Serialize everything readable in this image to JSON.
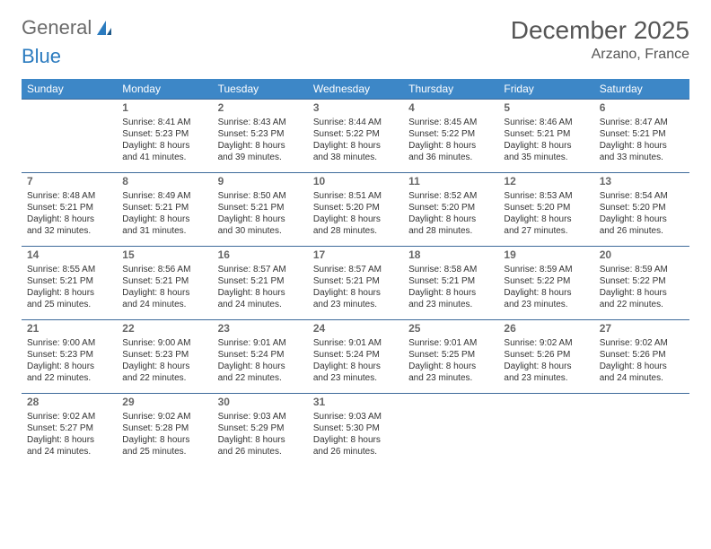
{
  "logo": {
    "part1": "General",
    "part2": "Blue"
  },
  "title": "December 2025",
  "location": "Arzano, France",
  "weekdays": [
    "Sunday",
    "Monday",
    "Tuesday",
    "Wednesday",
    "Thursday",
    "Friday",
    "Saturday"
  ],
  "colors": {
    "header_bg": "#3d87c7",
    "header_text": "#ffffff",
    "cell_border": "#3d6a9a",
    "logo_gray": "#6a6a6a",
    "logo_blue": "#2b7bbf",
    "title_color": "#555555"
  },
  "weeks": [
    [
      null,
      {
        "n": "1",
        "sr": "Sunrise: 8:41 AM",
        "ss": "Sunset: 5:23 PM",
        "d1": "Daylight: 8 hours",
        "d2": "and 41 minutes."
      },
      {
        "n": "2",
        "sr": "Sunrise: 8:43 AM",
        "ss": "Sunset: 5:23 PM",
        "d1": "Daylight: 8 hours",
        "d2": "and 39 minutes."
      },
      {
        "n": "3",
        "sr": "Sunrise: 8:44 AM",
        "ss": "Sunset: 5:22 PM",
        "d1": "Daylight: 8 hours",
        "d2": "and 38 minutes."
      },
      {
        "n": "4",
        "sr": "Sunrise: 8:45 AM",
        "ss": "Sunset: 5:22 PM",
        "d1": "Daylight: 8 hours",
        "d2": "and 36 minutes."
      },
      {
        "n": "5",
        "sr": "Sunrise: 8:46 AM",
        "ss": "Sunset: 5:21 PM",
        "d1": "Daylight: 8 hours",
        "d2": "and 35 minutes."
      },
      {
        "n": "6",
        "sr": "Sunrise: 8:47 AM",
        "ss": "Sunset: 5:21 PM",
        "d1": "Daylight: 8 hours",
        "d2": "and 33 minutes."
      }
    ],
    [
      {
        "n": "7",
        "sr": "Sunrise: 8:48 AM",
        "ss": "Sunset: 5:21 PM",
        "d1": "Daylight: 8 hours",
        "d2": "and 32 minutes."
      },
      {
        "n": "8",
        "sr": "Sunrise: 8:49 AM",
        "ss": "Sunset: 5:21 PM",
        "d1": "Daylight: 8 hours",
        "d2": "and 31 minutes."
      },
      {
        "n": "9",
        "sr": "Sunrise: 8:50 AM",
        "ss": "Sunset: 5:21 PM",
        "d1": "Daylight: 8 hours",
        "d2": "and 30 minutes."
      },
      {
        "n": "10",
        "sr": "Sunrise: 8:51 AM",
        "ss": "Sunset: 5:20 PM",
        "d1": "Daylight: 8 hours",
        "d2": "and 28 minutes."
      },
      {
        "n": "11",
        "sr": "Sunrise: 8:52 AM",
        "ss": "Sunset: 5:20 PM",
        "d1": "Daylight: 8 hours",
        "d2": "and 28 minutes."
      },
      {
        "n": "12",
        "sr": "Sunrise: 8:53 AM",
        "ss": "Sunset: 5:20 PM",
        "d1": "Daylight: 8 hours",
        "d2": "and 27 minutes."
      },
      {
        "n": "13",
        "sr": "Sunrise: 8:54 AM",
        "ss": "Sunset: 5:20 PM",
        "d1": "Daylight: 8 hours",
        "d2": "and 26 minutes."
      }
    ],
    [
      {
        "n": "14",
        "sr": "Sunrise: 8:55 AM",
        "ss": "Sunset: 5:21 PM",
        "d1": "Daylight: 8 hours",
        "d2": "and 25 minutes."
      },
      {
        "n": "15",
        "sr": "Sunrise: 8:56 AM",
        "ss": "Sunset: 5:21 PM",
        "d1": "Daylight: 8 hours",
        "d2": "and 24 minutes."
      },
      {
        "n": "16",
        "sr": "Sunrise: 8:57 AM",
        "ss": "Sunset: 5:21 PM",
        "d1": "Daylight: 8 hours",
        "d2": "and 24 minutes."
      },
      {
        "n": "17",
        "sr": "Sunrise: 8:57 AM",
        "ss": "Sunset: 5:21 PM",
        "d1": "Daylight: 8 hours",
        "d2": "and 23 minutes."
      },
      {
        "n": "18",
        "sr": "Sunrise: 8:58 AM",
        "ss": "Sunset: 5:21 PM",
        "d1": "Daylight: 8 hours",
        "d2": "and 23 minutes."
      },
      {
        "n": "19",
        "sr": "Sunrise: 8:59 AM",
        "ss": "Sunset: 5:22 PM",
        "d1": "Daylight: 8 hours",
        "d2": "and 23 minutes."
      },
      {
        "n": "20",
        "sr": "Sunrise: 8:59 AM",
        "ss": "Sunset: 5:22 PM",
        "d1": "Daylight: 8 hours",
        "d2": "and 22 minutes."
      }
    ],
    [
      {
        "n": "21",
        "sr": "Sunrise: 9:00 AM",
        "ss": "Sunset: 5:23 PM",
        "d1": "Daylight: 8 hours",
        "d2": "and 22 minutes."
      },
      {
        "n": "22",
        "sr": "Sunrise: 9:00 AM",
        "ss": "Sunset: 5:23 PM",
        "d1": "Daylight: 8 hours",
        "d2": "and 22 minutes."
      },
      {
        "n": "23",
        "sr": "Sunrise: 9:01 AM",
        "ss": "Sunset: 5:24 PM",
        "d1": "Daylight: 8 hours",
        "d2": "and 22 minutes."
      },
      {
        "n": "24",
        "sr": "Sunrise: 9:01 AM",
        "ss": "Sunset: 5:24 PM",
        "d1": "Daylight: 8 hours",
        "d2": "and 23 minutes."
      },
      {
        "n": "25",
        "sr": "Sunrise: 9:01 AM",
        "ss": "Sunset: 5:25 PM",
        "d1": "Daylight: 8 hours",
        "d2": "and 23 minutes."
      },
      {
        "n": "26",
        "sr": "Sunrise: 9:02 AM",
        "ss": "Sunset: 5:26 PM",
        "d1": "Daylight: 8 hours",
        "d2": "and 23 minutes."
      },
      {
        "n": "27",
        "sr": "Sunrise: 9:02 AM",
        "ss": "Sunset: 5:26 PM",
        "d1": "Daylight: 8 hours",
        "d2": "and 24 minutes."
      }
    ],
    [
      {
        "n": "28",
        "sr": "Sunrise: 9:02 AM",
        "ss": "Sunset: 5:27 PM",
        "d1": "Daylight: 8 hours",
        "d2": "and 24 minutes."
      },
      {
        "n": "29",
        "sr": "Sunrise: 9:02 AM",
        "ss": "Sunset: 5:28 PM",
        "d1": "Daylight: 8 hours",
        "d2": "and 25 minutes."
      },
      {
        "n": "30",
        "sr": "Sunrise: 9:03 AM",
        "ss": "Sunset: 5:29 PM",
        "d1": "Daylight: 8 hours",
        "d2": "and 26 minutes."
      },
      {
        "n": "31",
        "sr": "Sunrise: 9:03 AM",
        "ss": "Sunset: 5:30 PM",
        "d1": "Daylight: 8 hours",
        "d2": "and 26 minutes."
      },
      null,
      null,
      null
    ]
  ]
}
